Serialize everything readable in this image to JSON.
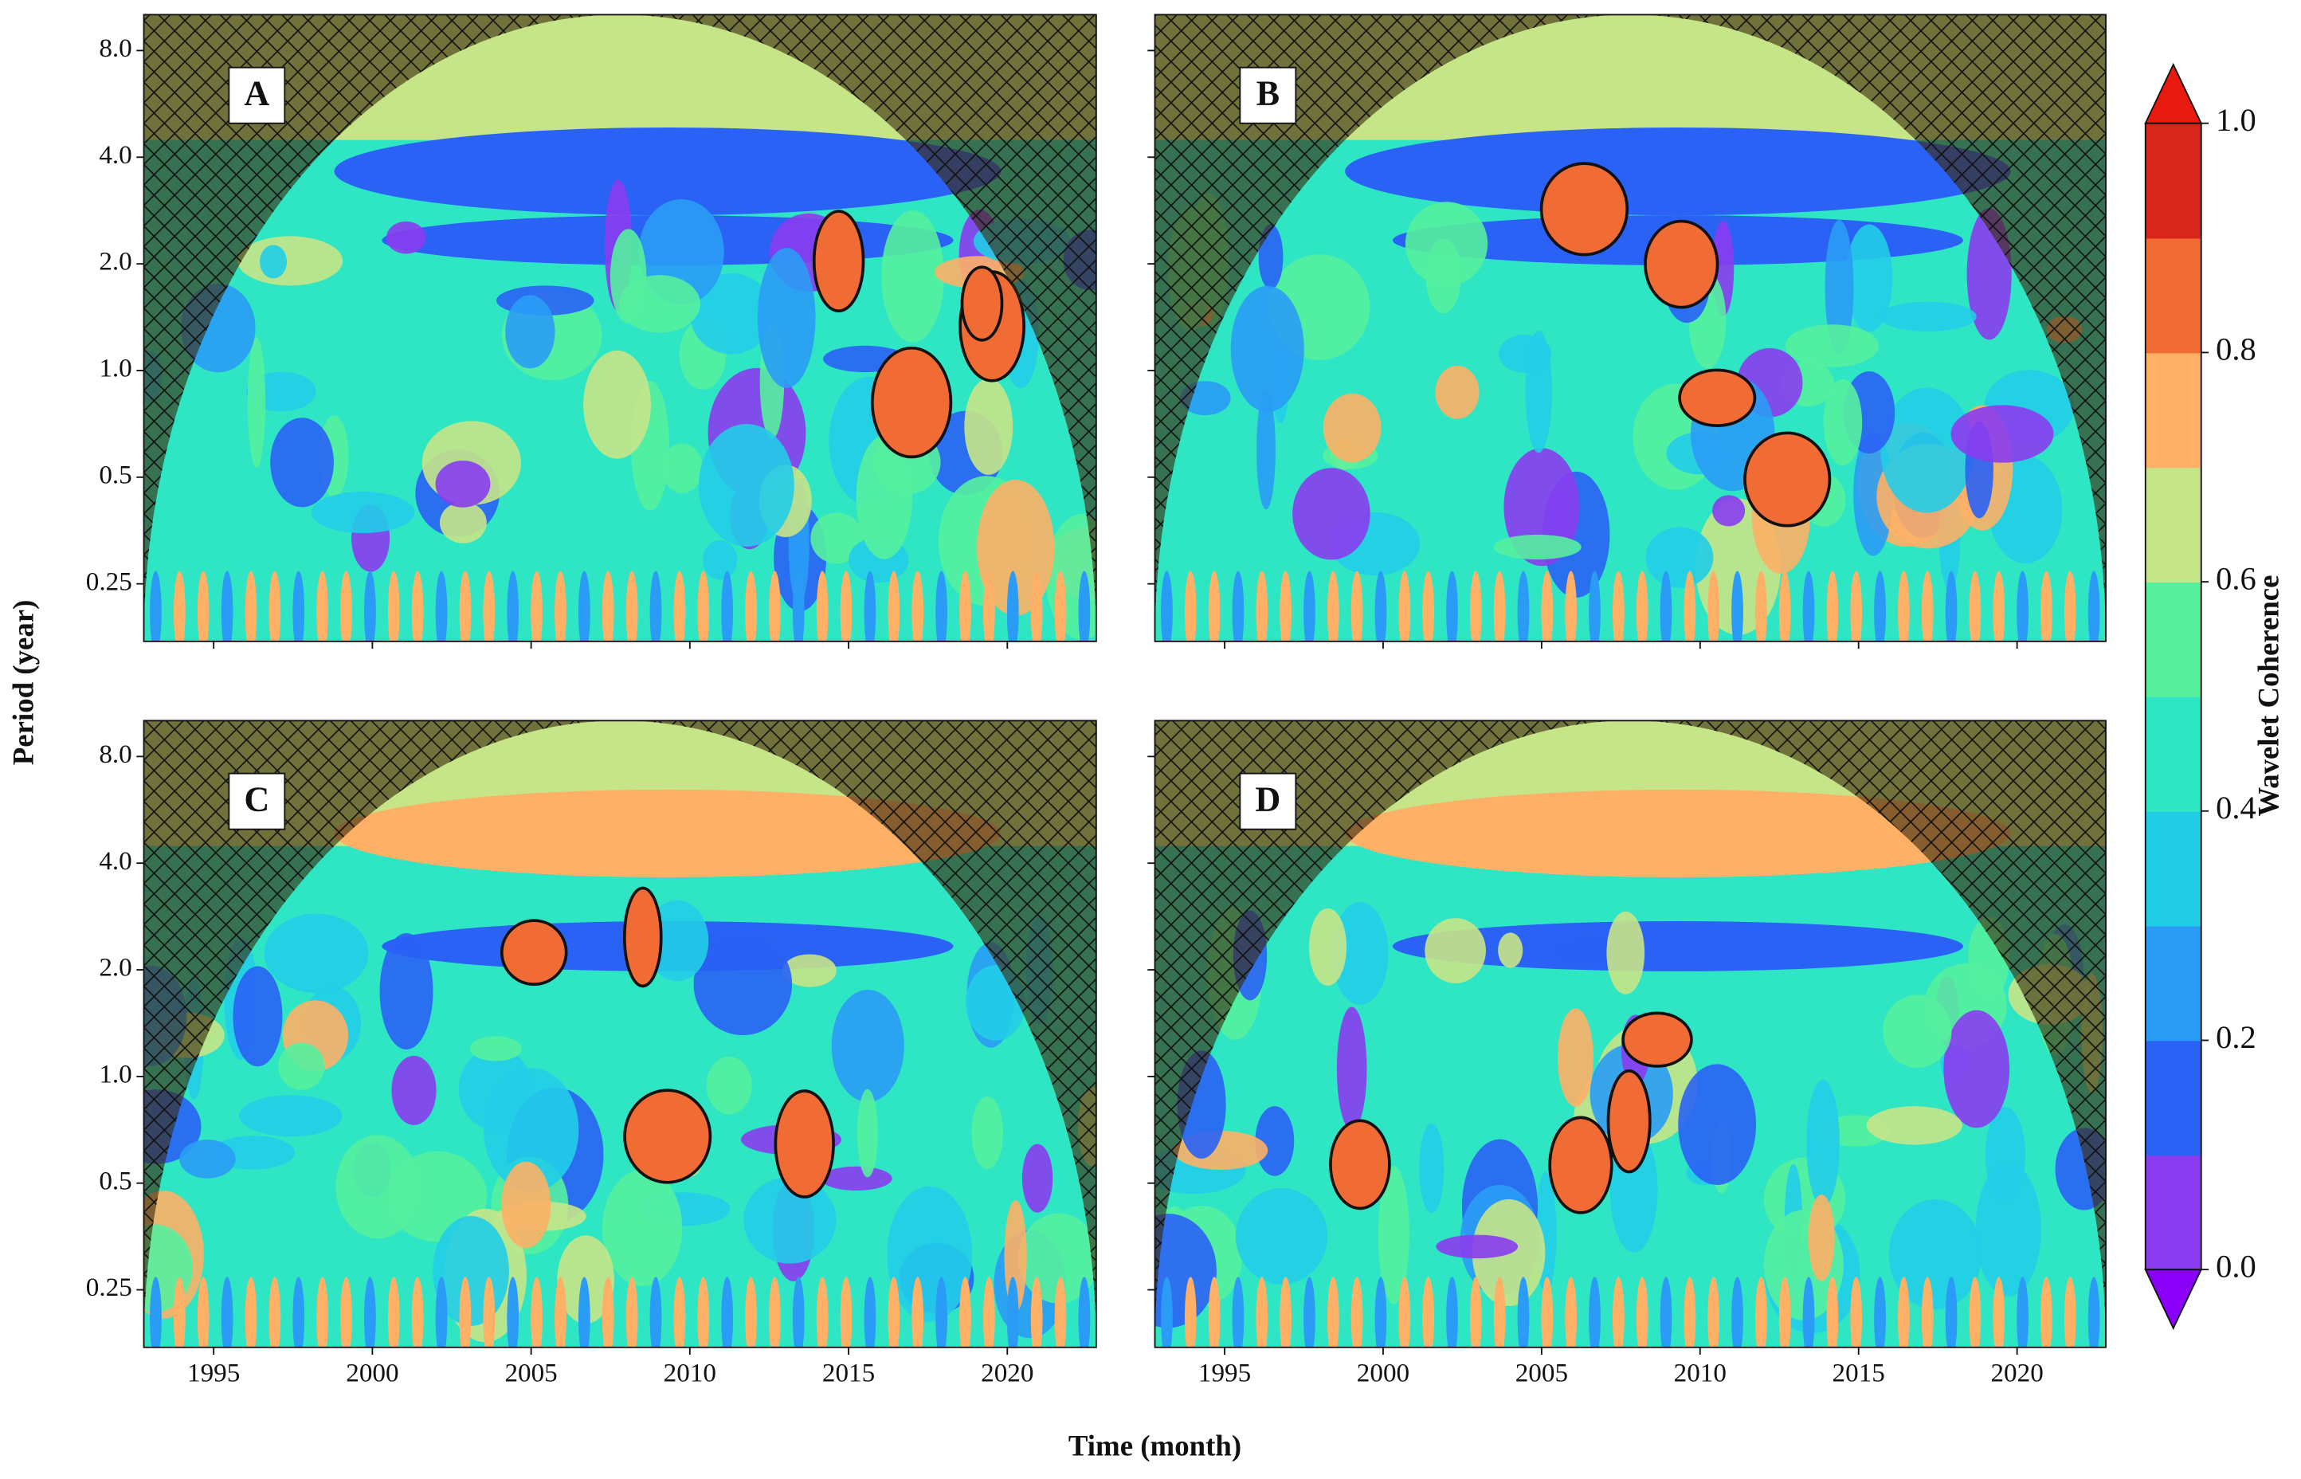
{
  "chart_data": {
    "type": "heatmap",
    "panels": [
      "A",
      "B",
      "C",
      "D"
    ],
    "xlabel": "Time (month)",
    "ylabel": "Period (year)",
    "xlim": [
      1992.8,
      2022.8
    ],
    "xticks": [
      1995,
      2000,
      2005,
      2010,
      2015,
      2020
    ],
    "ylim": [
      0.172,
      10.1
    ],
    "ylog": true,
    "yticks": [
      {
        "value": 8,
        "label": "8.0"
      },
      {
        "value": 4,
        "label": "4.0"
      },
      {
        "value": 2,
        "label": "2.0"
      },
      {
        "value": 1,
        "label": "1.0"
      },
      0.5,
      0.25
    ],
    "colorbar": {
      "label": "Wavelet Coherence",
      "lim": [
        0,
        1
      ],
      "ticks": [
        {
          "value": 0,
          "label": "0.0"
        },
        0.2,
        0.4,
        0.6,
        0.8,
        {
          "value": 1,
          "label": "1.0"
        }
      ],
      "colors": [
        "#8a3cf0",
        "#2a62f5",
        "#2a9cf5",
        "#22cde8",
        "#2ee6c4",
        "#55ef9e",
        "#c6e488",
        "#fdb066",
        "#f06c34",
        "#d8261a"
      ],
      "under_color": "#8a00f8",
      "over_color": "#e81a10"
    }
  }
}
